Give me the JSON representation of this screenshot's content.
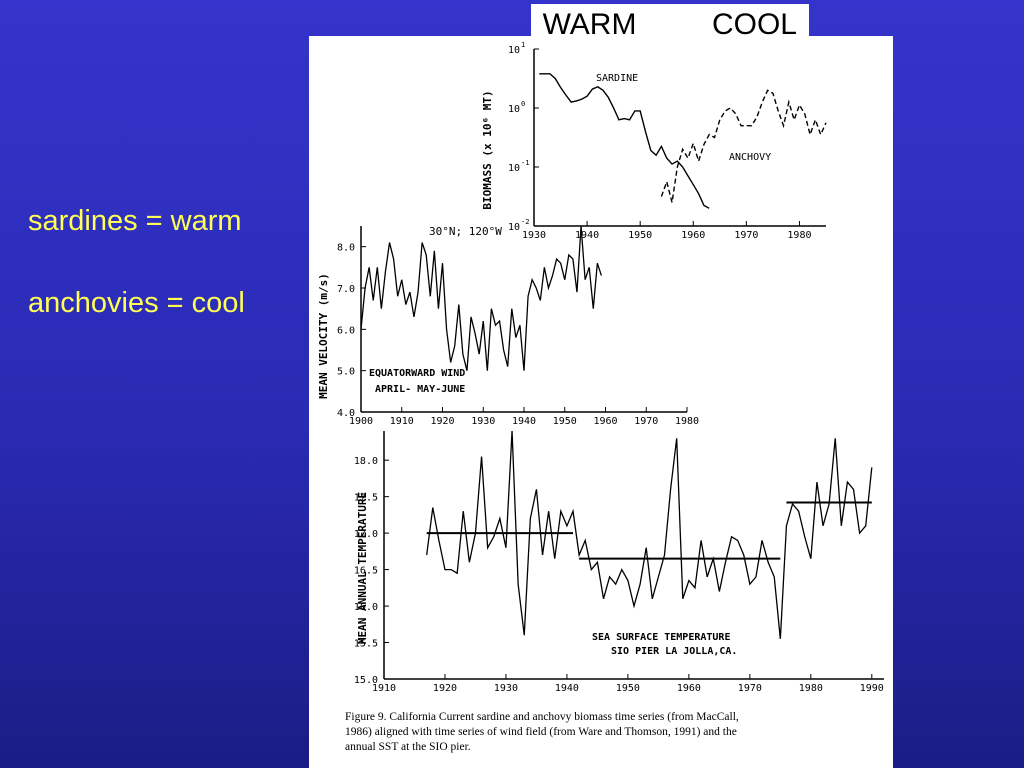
{
  "bullets": [
    "sardines = warm",
    "anchovies = cool"
  ],
  "tags": {
    "warm": "WARM",
    "cool": "COOL"
  },
  "caption": {
    "line1": "Figure 9.  California Current sardine and anchovy biomass time series (from MacCall,",
    "line2": "1986) aligned with time series of wind field (from Ware and Thomson, 1991) and the",
    "line3": "annual SST at the SIO pier."
  },
  "chart_data": [
    {
      "type": "line",
      "ylabel": "BIOMASS (x 10⁶ MT)",
      "ylog": true,
      "ylim_log10": [
        -2,
        1
      ],
      "ytick_base": "10",
      "yticks_exp": [
        "1",
        "0",
        "-1",
        "-2"
      ],
      "xlim": [
        1930,
        1985
      ],
      "xticks": [
        1930,
        1940,
        1950,
        1960,
        1970,
        1980
      ],
      "series": [
        {
          "name": "SARDINE",
          "style": "solid",
          "x": [
            1931,
            1932,
            1933,
            1934,
            1935,
            1936,
            1937,
            1938,
            1939,
            1940,
            1941,
            1942,
            1943,
            1944,
            1945,
            1946,
            1947,
            1948,
            1949,
            1950,
            1951,
            1952,
            1953,
            1954,
            1955,
            1956,
            1957,
            1958,
            1959,
            1960,
            1961,
            1962,
            1963
          ],
          "log10": [
            0.58,
            0.58,
            0.58,
            0.5,
            0.35,
            0.22,
            0.1,
            0.12,
            0.15,
            0.2,
            0.32,
            0.36,
            0.3,
            0.18,
            0.0,
            -0.2,
            -0.18,
            -0.2,
            -0.05,
            -0.05,
            -0.4,
            -0.72,
            -0.8,
            -0.65,
            -0.85,
            -0.95,
            -0.9,
            -1.0,
            -1.15,
            -1.3,
            -1.45,
            -1.65,
            -1.7
          ]
        },
        {
          "name": "ANCHOVY",
          "style": "dashed",
          "x": [
            1954,
            1955,
            1956,
            1957,
            1958,
            1959,
            1960,
            1961,
            1962,
            1963,
            1964,
            1965,
            1966,
            1967,
            1968,
            1969,
            1970,
            1971,
            1972,
            1973,
            1974,
            1975,
            1976,
            1977,
            1978,
            1979,
            1980,
            1981,
            1982,
            1983,
            1984,
            1985
          ],
          "log10": [
            -1.5,
            -1.25,
            -1.6,
            -1.0,
            -0.7,
            -0.85,
            -0.6,
            -0.9,
            -0.62,
            -0.45,
            -0.5,
            -0.2,
            -0.05,
            0.0,
            -0.1,
            -0.3,
            -0.3,
            -0.3,
            -0.15,
            0.1,
            0.3,
            0.25,
            -0.05,
            -0.3,
            0.1,
            -0.2,
            0.05,
            -0.1,
            -0.45,
            -0.2,
            -0.45,
            -0.25
          ]
        }
      ]
    },
    {
      "type": "line",
      "title": "30°N; 120°W",
      "ylabel": "MEAN VELOCITY (m/s)",
      "annotation": [
        "EQUATORWARD WIND",
        "APRIL- MAY-JUNE"
      ],
      "xlim": [
        1900,
        1980
      ],
      "ylim": [
        4.0,
        8.5
      ],
      "xticks": [
        1900,
        1910,
        1920,
        1930,
        1940,
        1950,
        1960,
        1970,
        1980
      ],
      "yticks": [
        "4.0",
        "5.0",
        "6.0",
        "7.0",
        "8.0"
      ],
      "series": [
        {
          "x": [
            1900,
            1901,
            1902,
            1903,
            1904,
            1905,
            1906,
            1907,
            1908,
            1909,
            1910,
            1911,
            1912,
            1913,
            1914,
            1915,
            1916,
            1917,
            1918,
            1919,
            1920,
            1921,
            1922,
            1923,
            1924,
            1925,
            1926,
            1927,
            1928,
            1929,
            1930,
            1931,
            1932,
            1933,
            1934,
            1935,
            1936,
            1937,
            1938,
            1939,
            1940,
            1941,
            1942,
            1943,
            1944,
            1945,
            1946,
            1947,
            1948,
            1949,
            1950,
            1951,
            1952,
            1953,
            1954,
            1955,
            1956,
            1957,
            1958,
            1959
          ],
          "values": [
            6.0,
            7.0,
            7.5,
            6.7,
            7.5,
            6.5,
            7.4,
            8.1,
            7.7,
            6.8,
            7.2,
            6.6,
            6.9,
            6.3,
            6.9,
            8.1,
            7.8,
            6.8,
            7.9,
            6.5,
            7.6,
            6.0,
            5.2,
            5.6,
            6.6,
            5.4,
            5.0,
            6.3,
            5.9,
            5.4,
            6.2,
            5.0,
            6.5,
            6.1,
            6.2,
            5.5,
            5.1,
            6.5,
            5.8,
            6.1,
            5.0,
            6.8,
            7.2,
            7.0,
            6.7,
            7.5,
            7.0,
            7.3,
            7.7,
            7.6,
            7.2,
            7.8,
            7.7,
            6.9,
            8.5,
            7.2,
            7.5,
            6.5,
            7.6,
            7.3
          ]
        }
      ]
    },
    {
      "type": "line",
      "ylabel": "MEAN ANNUAL TEMPERATURE",
      "annotation": [
        "SEA SURFACE TEMPERATURE",
        "SIO PIER LA JOLLA,CA."
      ],
      "xlim": [
        1910,
        1992
      ],
      "ylim": [
        15.0,
        18.4
      ],
      "xticks": [
        1910,
        1920,
        1930,
        1940,
        1950,
        1960,
        1970,
        1980,
        1990
      ],
      "yticks": [
        "15.0",
        "15.5",
        "16.0",
        "16.5",
        "17.0",
        "17.5",
        "18.0"
      ],
      "series": [
        {
          "x": [
            1917,
            1918,
            1919,
            1920,
            1921,
            1922,
            1923,
            1924,
            1925,
            1926,
            1927,
            1928,
            1929,
            1930,
            1931,
            1932,
            1933,
            1934,
            1935,
            1936,
            1937,
            1938,
            1939,
            1940,
            1941,
            1942,
            1943,
            1944,
            1945,
            1946,
            1947,
            1948,
            1949,
            1950,
            1951,
            1952,
            1953,
            1954,
            1955,
            1956,
            1957,
            1958,
            1959,
            1960,
            1961,
            1962,
            1963,
            1964,
            1965,
            1966,
            1967,
            1968,
            1969,
            1970,
            1971,
            1972,
            1973,
            1974,
            1975,
            1976,
            1977,
            1978,
            1979,
            1980,
            1981,
            1982,
            1983,
            1984,
            1985,
            1986,
            1987,
            1988,
            1989,
            1990
          ],
          "values": [
            16.7,
            17.35,
            16.9,
            16.5,
            16.5,
            16.45,
            17.3,
            16.6,
            17.0,
            18.05,
            16.8,
            16.95,
            17.2,
            16.8,
            18.4,
            16.3,
            15.6,
            17.2,
            17.6,
            16.7,
            17.3,
            16.65,
            17.3,
            17.1,
            17.3,
            16.7,
            16.9,
            16.5,
            16.6,
            16.1,
            16.4,
            16.3,
            16.5,
            16.35,
            16.0,
            16.3,
            16.8,
            16.1,
            16.4,
            16.7,
            17.6,
            18.3,
            16.1,
            16.35,
            16.25,
            16.9,
            16.4,
            16.65,
            16.2,
            16.6,
            16.95,
            16.9,
            16.7,
            16.3,
            16.4,
            16.9,
            16.6,
            16.4,
            15.55,
            17.1,
            17.4,
            17.3,
            16.95,
            16.65,
            17.7,
            17.1,
            17.4,
            18.3,
            17.1,
            17.7,
            17.6,
            17.0,
            17.1,
            17.9
          ]
        }
      ],
      "mean_lines": [
        {
          "x": [
            1917,
            1941
          ],
          "value": 17.0
        },
        {
          "x": [
            1942,
            1975
          ],
          "value": 16.65
        },
        {
          "x": [
            1976,
            1990
          ],
          "value": 17.42
        }
      ]
    }
  ]
}
